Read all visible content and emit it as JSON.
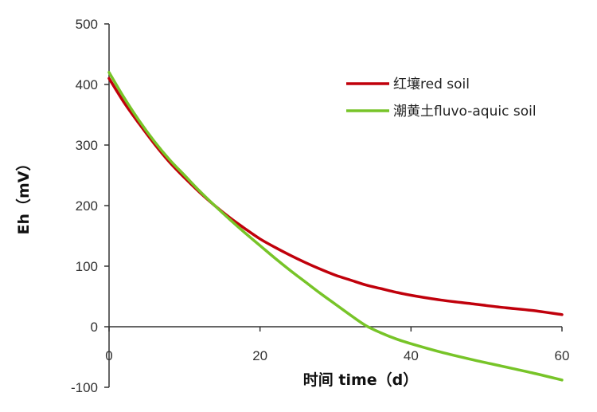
{
  "chart_data": {
    "type": "line",
    "xlabel": "时间 time（d）",
    "ylabel": "Eh（mV）",
    "xlim": [
      0,
      60
    ],
    "ylim": [
      -100,
      500
    ],
    "xticks": [
      0,
      20,
      40,
      60
    ],
    "yticks": [
      -100,
      0,
      100,
      200,
      300,
      400,
      500
    ],
    "grid": false,
    "legend_position": "top-right",
    "series": [
      {
        "name": "红壤red soil",
        "color": "#c0000b",
        "x": [
          0,
          2,
          4,
          6,
          8,
          10,
          12,
          14,
          16,
          18,
          20,
          22,
          24,
          26,
          28,
          30,
          32,
          34,
          36,
          38,
          40,
          44,
          48,
          52,
          56,
          60
        ],
        "y": [
          410,
          370,
          335,
          302,
          272,
          246,
          222,
          200,
          180,
          162,
          145,
          131,
          118,
          106,
          95,
          85,
          77,
          69,
          63,
          57,
          52,
          44,
          38,
          32,
          27,
          20
        ]
      },
      {
        "name": "潮黄土fluvo-aquic soil",
        "color": "#77c428",
        "x": [
          0,
          2,
          4,
          6,
          8,
          10,
          12,
          14,
          16,
          18,
          20,
          22,
          24,
          26,
          28,
          30,
          32,
          34,
          36,
          38,
          40,
          44,
          48,
          52,
          56,
          60
        ],
        "y": [
          420,
          378,
          340,
          306,
          276,
          250,
          224,
          200,
          177,
          155,
          134,
          113,
          93,
          74,
          55,
          37,
          19,
          2,
          -10,
          -20,
          -28,
          -42,
          -54,
          -65,
          -76,
          -88
        ]
      }
    ]
  }
}
